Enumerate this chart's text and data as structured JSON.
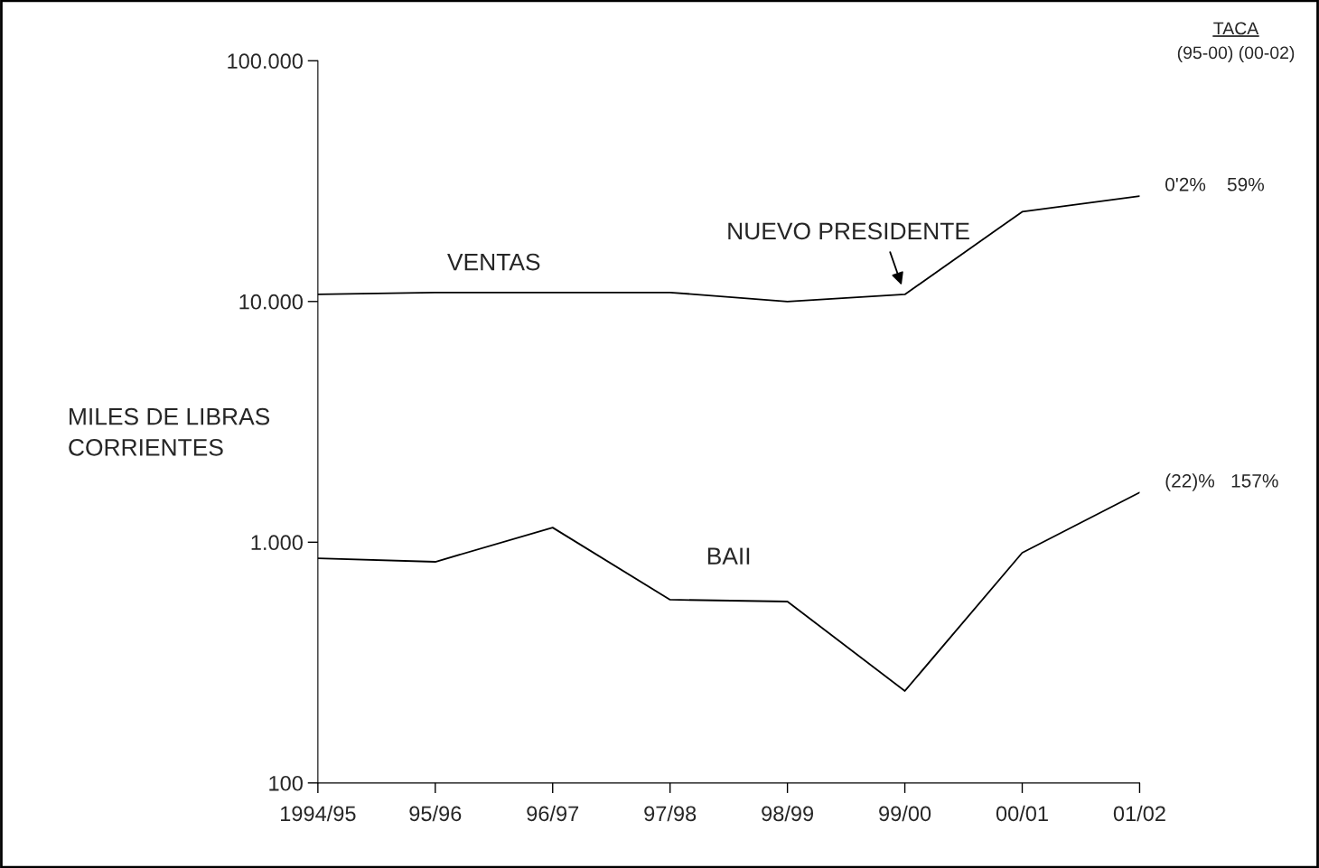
{
  "chart_data": {
    "type": "line",
    "ylabel": "MILES DE LIBRAS CORRIENTES",
    "categories": [
      "1994/95",
      "95/96",
      "96/97",
      "97/98",
      "98/99",
      "99/00",
      "00/01",
      "01/02"
    ],
    "series": [
      {
        "name": "VENTAS",
        "color": "#000000",
        "values": [
          10700,
          10900,
          10900,
          10900,
          10000,
          10700,
          23600,
          27400
        ]
      },
      {
        "name": "BAII",
        "color": "#000000",
        "values": [
          858,
          829,
          1150,
          577,
          567,
          241,
          904,
          1610
        ]
      }
    ],
    "log": true,
    "ylim": [
      100,
      100000
    ],
    "yticks": [
      {
        "value": 100,
        "label": "100"
      },
      {
        "value": 1000,
        "label": "1.000"
      },
      {
        "value": 10000,
        "label": "10.000"
      },
      {
        "value": 100000,
        "label": "100.000"
      }
    ],
    "grid": false,
    "marker": "none",
    "line_style": "solid",
    "annotations": [
      "TACA",
      "(95-00) (00-02)",
      {
        "text": "NUEVO PRESIDENTE",
        "x": "99/00",
        "y": 10700
      },
      {
        "text": "0'2%    59%",
        "x": "01/02",
        "y": 27400
      },
      {
        "text": "(22)%   157%",
        "x": "01/02",
        "y": 1610
      }
    ]
  }
}
